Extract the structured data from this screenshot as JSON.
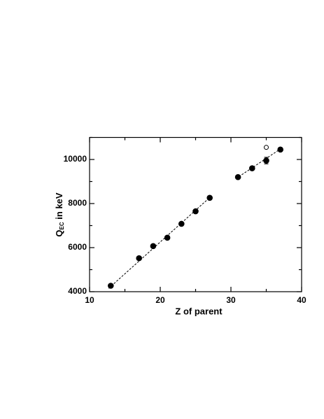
{
  "chart_data": {
    "type": "scatter",
    "x_label": "Z of parent",
    "y_label": {
      "main": "Q",
      "sub": "EC",
      "rest": " in keV"
    },
    "xlim": [
      10,
      40
    ],
    "xticks": [
      10,
      20,
      30,
      40
    ],
    "xminor": [
      15,
      25,
      35
    ],
    "ylim": [
      4000,
      11000
    ],
    "yticks": [
      4000,
      6000,
      8000,
      10000
    ],
    "yminor": [
      5000,
      7000,
      9000,
      11000
    ],
    "series": [
      {
        "marker": "filled",
        "color": "#000000",
        "x": [
          13,
          17,
          19,
          21,
          23,
          25,
          27,
          31,
          33,
          35,
          37
        ],
        "values": [
          4270,
          5520,
          6070,
          6450,
          7080,
          7650,
          8260,
          9200,
          9600,
          9950,
          10450
        ],
        "errors": [
          null,
          null,
          null,
          null,
          null,
          null,
          null,
          null,
          null,
          150,
          null
        ]
      },
      {
        "marker": "open",
        "color": "#000000",
        "x": [
          35
        ],
        "values": [
          10550
        ]
      }
    ],
    "fits": [
      {
        "color": "#000000",
        "x": [
          12.7,
          27.2
        ],
        "values": [
          4150,
          8330
        ]
      },
      {
        "color": "#000000",
        "x": [
          30.7,
          37.3
        ],
        "values": [
          9130,
          10540
        ]
      }
    ]
  }
}
